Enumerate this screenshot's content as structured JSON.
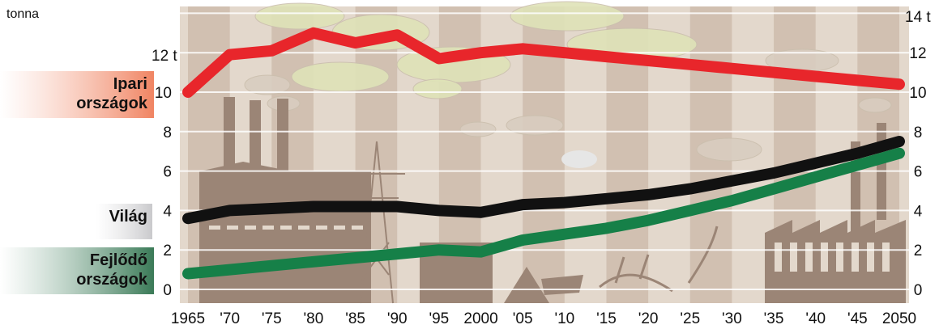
{
  "chart_data": {
    "type": "line",
    "title": "",
    "xlabel": "",
    "ylabel": "tonna",
    "y_top_label_left": "12 t",
    "y_top_label_right": "14 t",
    "ylim": [
      0,
      14
    ],
    "grid": true,
    "x_tick_labels": [
      "1965",
      "'70",
      "'75",
      "'80",
      "'85",
      "'90",
      "'95",
      "2000",
      "'05",
      "'10",
      "'15",
      "'20",
      "'25",
      "'30",
      "'35",
      "'40",
      "'45",
      "2050"
    ],
    "y_ticks_left": [
      "0",
      "2",
      "4",
      "6",
      "8",
      "10"
    ],
    "y_ticks_right": [
      "0",
      "2",
      "4",
      "6",
      "8",
      "10",
      "12"
    ],
    "series": [
      {
        "name": "Ipari országok",
        "label_lines": [
          "Ipari",
          "országok"
        ],
        "color": "#e8262b",
        "label_color": "#f08462",
        "x": [
          1965,
          1970,
          1975,
          1980,
          1985,
          1990,
          1995,
          2000,
          2005,
          2010,
          2015,
          2020,
          2025,
          2030,
          2035,
          2040,
          2045,
          2050
        ],
        "y": [
          10.0,
          11.9,
          12.1,
          13.0,
          12.5,
          12.9,
          11.7,
          12.0,
          12.2,
          12.0,
          11.8,
          11.6,
          11.4,
          11.2,
          11.0,
          10.8,
          10.6,
          10.4
        ]
      },
      {
        "name": "Világ",
        "label_lines": [
          "Világ"
        ],
        "color": "#111111",
        "label_color": "#c9c9cc",
        "x": [
          1965,
          1970,
          1975,
          1980,
          1985,
          1990,
          1995,
          2000,
          2005,
          2010,
          2015,
          2020,
          2025,
          2030,
          2035,
          2040,
          2045,
          2050
        ],
        "y": [
          3.6,
          4.0,
          4.1,
          4.2,
          4.2,
          4.2,
          4.0,
          3.9,
          4.3,
          4.4,
          4.6,
          4.8,
          5.1,
          5.5,
          5.9,
          6.4,
          6.9,
          7.5
        ]
      },
      {
        "name": "Fejlődő országok",
        "label_lines": [
          "Fejlődő",
          "országok"
        ],
        "color": "#168048",
        "label_color": "#3a7a57",
        "x": [
          1965,
          1970,
          1975,
          1980,
          1985,
          1990,
          1995,
          2000,
          2005,
          2010,
          2015,
          2020,
          2025,
          2030,
          2035,
          2040,
          2045,
          2050
        ],
        "y": [
          0.8,
          1.0,
          1.2,
          1.4,
          1.6,
          1.8,
          2.0,
          1.9,
          2.5,
          2.8,
          3.1,
          3.5,
          4.0,
          4.5,
          5.1,
          5.7,
          6.3,
          6.9
        ]
      }
    ]
  },
  "palette": {
    "background": "#e3d8cc",
    "stripe_dark": "#c2ad9b",
    "gridline": "#ffffff",
    "silhouette": "#9b8576",
    "cloud_light": "#dfe3b8",
    "cloud_outline": "#d9cdc0"
  }
}
